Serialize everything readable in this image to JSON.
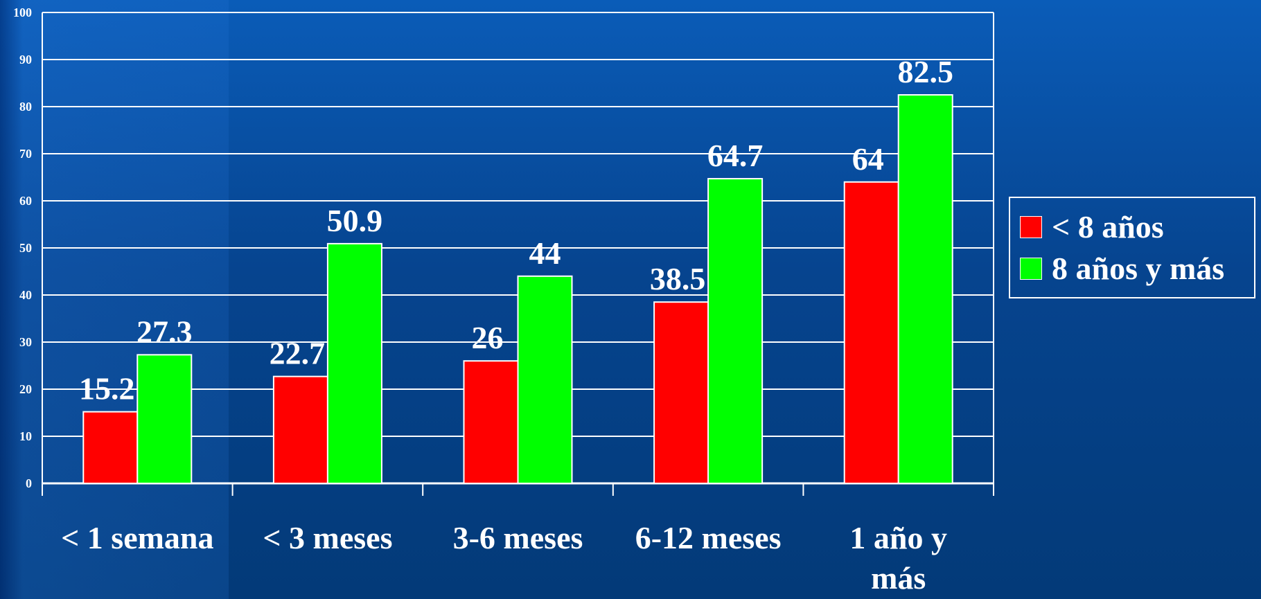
{
  "chart_data": {
    "type": "bar",
    "categories": [
      "< 1 semana",
      "< 3 meses",
      "3-6 meses",
      "6-12 meses",
      "1 año y más"
    ],
    "series": [
      {
        "name": "< 8 años",
        "color": "#ff0000",
        "values": [
          15.2,
          22.7,
          26,
          38.5,
          64
        ]
      },
      {
        "name": "8 años y más",
        "color": "#00ff00",
        "values": [
          27.3,
          50.9,
          44,
          64.7,
          82.5
        ]
      }
    ],
    "yticks": [
      "0",
      "10",
      "20",
      "30",
      "40",
      "50",
      "60",
      "70",
      "80",
      "90",
      "100"
    ],
    "ylim": [
      0,
      100
    ],
    "grid": true,
    "legend_position": "right",
    "data_labels": true
  }
}
